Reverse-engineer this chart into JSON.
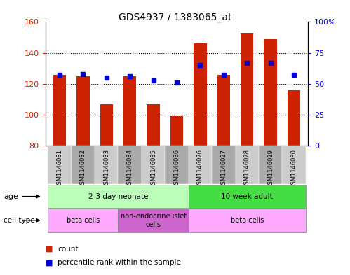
{
  "title": "GDS4937 / 1383065_at",
  "samples": [
    "GSM1146031",
    "GSM1146032",
    "GSM1146033",
    "GSM1146034",
    "GSM1146035",
    "GSM1146036",
    "GSM1146026",
    "GSM1146027",
    "GSM1146028",
    "GSM1146029",
    "GSM1146030"
  ],
  "counts": [
    126,
    125,
    107,
    125,
    107,
    99,
    146,
    126,
    153,
    149,
    116
  ],
  "percentiles": [
    57,
    58,
    55,
    56,
    53,
    51,
    65,
    57,
    67,
    67,
    57
  ],
  "ylim_left": [
    80,
    160
  ],
  "ylim_right": [
    0,
    100
  ],
  "yticks_left": [
    80,
    100,
    120,
    140,
    160
  ],
  "yticks_right": [
    0,
    25,
    50,
    75,
    100
  ],
  "ytick_labels_right": [
    "0",
    "25",
    "50",
    "75",
    "100%"
  ],
  "bar_color": "#cc2200",
  "dot_color": "#0000cc",
  "bar_bottom": 80,
  "age_groups": [
    {
      "label": "2-3 day neonate",
      "start": 0,
      "end": 6,
      "color": "#bbffbb"
    },
    {
      "label": "10 week adult",
      "start": 6,
      "end": 11,
      "color": "#44dd44"
    }
  ],
  "cell_groups": [
    {
      "label": "beta cells",
      "start": 0,
      "end": 3,
      "color": "#ffaaff"
    },
    {
      "label": "non-endocrine islet\ncells",
      "start": 3,
      "end": 6,
      "color": "#cc66cc"
    },
    {
      "label": "beta cells",
      "start": 6,
      "end": 11,
      "color": "#ffaaff"
    }
  ],
  "shade_even": "#cccccc",
  "shade_odd": "#aaaaaa",
  "background_color": "#ffffff",
  "tick_label_color_left": "#cc2200",
  "tick_label_color_right": "#0000cc",
  "grid_ticks": [
    100,
    120,
    140
  ]
}
